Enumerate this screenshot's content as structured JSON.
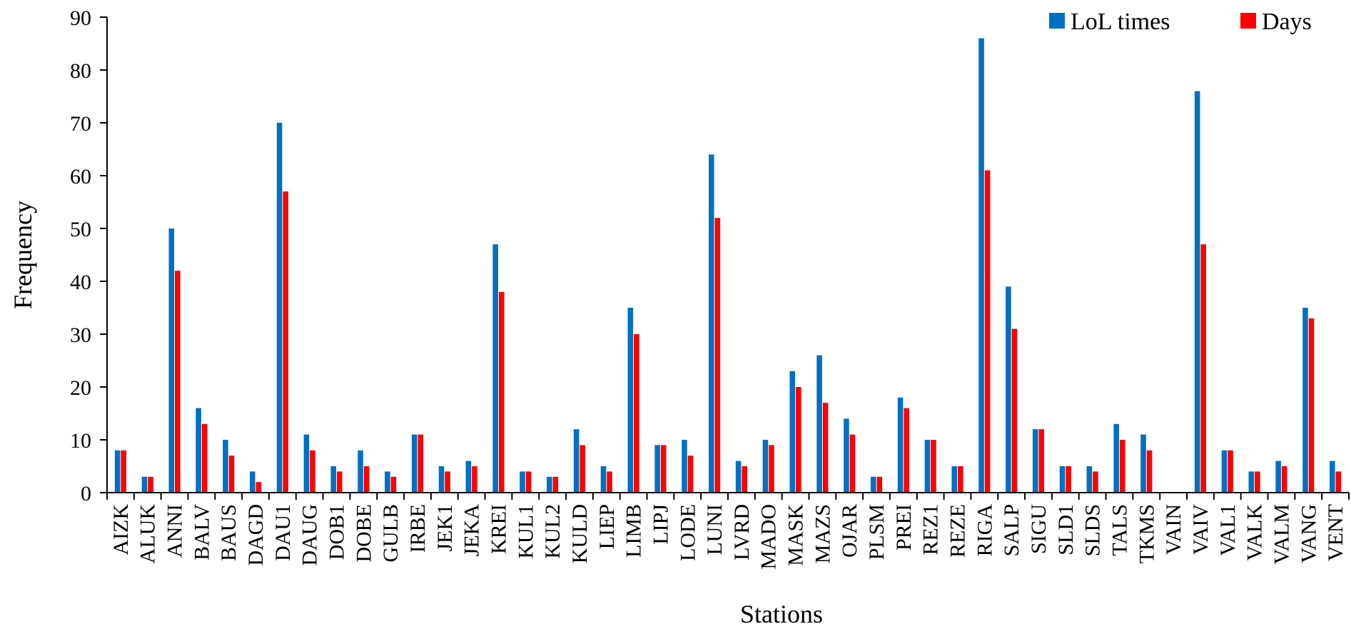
{
  "chart_data": {
    "type": "bar",
    "xlabel": "Stations",
    "ylabel": "Frequency",
    "ylim": [
      0,
      90
    ],
    "yticks": [
      0,
      10,
      20,
      30,
      40,
      50,
      60,
      70,
      80,
      90
    ],
    "grid": false,
    "legend_position": "top-right",
    "categories": [
      "AIZK",
      "ALUK",
      "ANNI",
      "BALV",
      "BAUS",
      "DAGD",
      "DAU1",
      "DAUG",
      "DOB1",
      "DOBE",
      "GULB",
      "IRBE",
      "JEK1",
      "JEKA",
      "KREI",
      "KUL1",
      "KUL2",
      "KULD",
      "LIEP",
      "LIMB",
      "LIPJ",
      "LODE",
      "LUNI",
      "LVRD",
      "MADO",
      "MASK",
      "MAZS",
      "OJAR",
      "PLSM",
      "PREI",
      "REZ1",
      "REZE",
      "RIGA",
      "SALP",
      "SIGU",
      "SLD1",
      "SLDS",
      "TALS",
      "TKMS",
      "VAIN",
      "VAIV",
      "VAL1",
      "VALK",
      "VALM",
      "VANG",
      "VENT"
    ],
    "series": [
      {
        "name": "LoL times",
        "color": "#0070C0",
        "values": [
          8,
          3,
          50,
          16,
          10,
          4,
          70,
          11,
          5,
          8,
          4,
          11,
          5,
          6,
          47,
          4,
          3,
          12,
          5,
          35,
          9,
          10,
          64,
          6,
          10,
          23,
          26,
          14,
          3,
          18,
          10,
          5,
          86,
          39,
          12,
          5,
          5,
          13,
          11,
          0,
          76,
          8,
          4,
          6,
          35,
          6
        ]
      },
      {
        "name": "Days",
        "color": "#FF0000",
        "values": [
          8,
          3,
          42,
          13,
          7,
          2,
          57,
          8,
          4,
          5,
          3,
          11,
          4,
          5,
          38,
          4,
          3,
          9,
          4,
          30,
          9,
          7,
          52,
          5,
          9,
          20,
          17,
          11,
          3,
          16,
          10,
          5,
          61,
          31,
          12,
          5,
          4,
          10,
          8,
          0,
          47,
          8,
          4,
          5,
          33,
          4
        ]
      }
    ]
  }
}
